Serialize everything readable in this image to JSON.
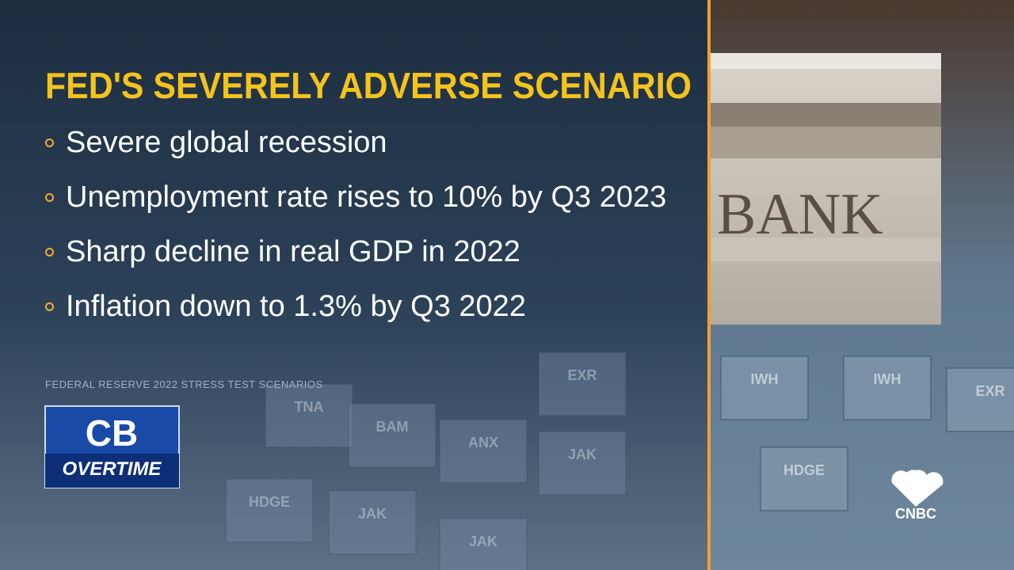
{
  "title": "FED'S SEVERELY ADVERSE SCENARIO",
  "bullets": [
    "Severe global recession",
    "Unemployment rate rises to 10% by Q3 2023",
    "Sharp decline in real GDP in 2022",
    "Inflation down to 1.3% by Q3 2022"
  ],
  "source": "FEDERAL RESERVE 2022 STRESS TEST SCENARIOS",
  "show_logo": {
    "top": "CB",
    "bottom": "OVERTIME"
  },
  "network_logo": "CNBC",
  "photo_sign": "BANK",
  "tiles": [
    "TNA",
    "BAM",
    "ANX",
    "JAK",
    "HDGE",
    "JAK",
    "JAK",
    "EXR",
    "IWH",
    "IWH",
    "HDGE",
    "EXR"
  ]
}
